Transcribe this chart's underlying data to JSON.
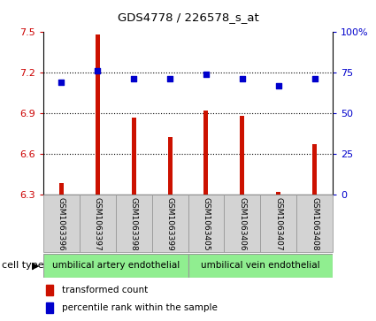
{
  "title": "GDS4778 / 226578_s_at",
  "samples": [
    "GSM1063396",
    "GSM1063397",
    "GSM1063398",
    "GSM1063399",
    "GSM1063405",
    "GSM1063406",
    "GSM1063407",
    "GSM1063408"
  ],
  "bar_values": [
    6.38,
    7.48,
    6.87,
    6.72,
    6.92,
    6.88,
    6.32,
    6.67
  ],
  "dot_values": [
    69,
    76,
    71,
    71,
    74,
    71,
    67,
    71
  ],
  "ylim_left": [
    6.3,
    7.5
  ],
  "ylim_right": [
    0,
    100
  ],
  "yticks_left": [
    6.3,
    6.6,
    6.9,
    7.2,
    7.5
  ],
  "yticks_right": [
    0,
    25,
    50,
    75,
    100
  ],
  "ytick_labels_right": [
    "0",
    "25",
    "50",
    "75",
    "100%"
  ],
  "bar_color": "#cc1100",
  "dot_color": "#0000cc",
  "group1_label": "umbilical artery endothelial",
  "group2_label": "umbilical vein endothelial",
  "group1_indices": [
    0,
    1,
    2,
    3
  ],
  "group2_indices": [
    4,
    5,
    6,
    7
  ],
  "cell_type_label": "cell type",
  "legend_bar_label": "transformed count",
  "legend_dot_label": "percentile rank within the sample",
  "bar_color_legend": "#cc1100",
  "dot_color_legend": "#0000cc",
  "tick_color_left": "#cc0000",
  "tick_color_right": "#0000cc",
  "sample_box_color": "#d3d3d3",
  "group_box_color": "#90ee90",
  "bar_width": 0.12,
  "dot_size": 18
}
